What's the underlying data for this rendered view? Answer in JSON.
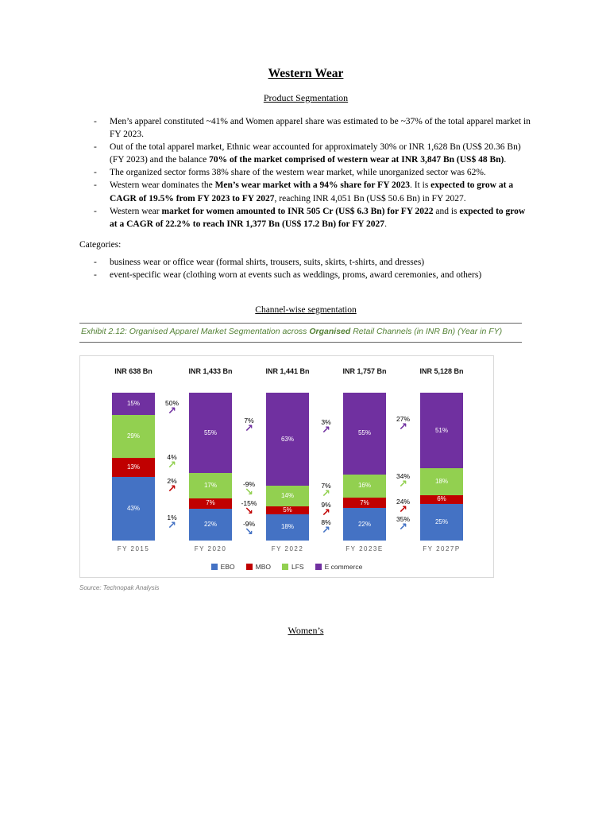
{
  "doc": {
    "title": "Western Wear",
    "subtitle": "Product Segmentation",
    "product_bullets": [
      [
        {
          "t": "Men’s apparel constituted ~41% and Women apparel share was estimated to be ~37% of the total apparel market in FY 2023."
        }
      ],
      [
        {
          "t": "Out of the total apparel market, Ethnic wear accounted for approximately 30% or INR 1,628 Bn (US$ 20.36 Bn) (FY 2023) and the balance "
        },
        {
          "t": "70% of the market comprised of western wear at INR 3,847 Bn (US$ 48 Bn)",
          "b": true
        },
        {
          "t": "."
        }
      ],
      [
        {
          "t": "The organized sector forms 38% share of the western wear market, while unorganized sector was 62%."
        }
      ],
      [
        {
          "t": "Western wear dominates the "
        },
        {
          "t": "Men’s wear market with a 94% share for FY 2023",
          "b": true
        },
        {
          "t": ". It is "
        },
        {
          "t": "expected to grow at a CAGR of 19.5% from FY 2023 to FY 2027",
          "b": true
        },
        {
          "t": ", reaching INR 4,051 Bn (US$ 50.6 Bn) in FY 2027."
        }
      ],
      [
        {
          "t": "Western wear "
        },
        {
          "t": "market for women amounted to INR 505 Cr (US$ 6.3 Bn) for FY 2022",
          "b": true
        },
        {
          "t": " and is "
        },
        {
          "t": "expected to grow at a CAGR of 22.2% to reach INR 1,377 Bn (US$ 17.2 Bn) for FY 2027",
          "b": true
        },
        {
          "t": "."
        }
      ]
    ],
    "categories_label": "Categories:",
    "category_bullets": [
      [
        {
          "t": "business wear or office wear (formal shirts, trousers, suits, skirts, t-shirts, and dresses)"
        }
      ],
      [
        {
          "t": "event-specific wear (clothing worn at events such as weddings, proms, award ceremonies, and others)"
        }
      ]
    ],
    "channel_heading": "Channel-wise segmentation",
    "exhibit_caption": [
      {
        "t": "Exhibit 2.12: Organised Apparel Market Segmentation across "
      },
      {
        "t": "Organised",
        "b": true
      },
      {
        "t": " Retail Channels (in INR Bn) (Year in FY)"
      }
    ],
    "source": "Source: Technopak Analysis",
    "womens_heading": "Women’s"
  },
  "chart_data": {
    "type": "bar",
    "subtype": "stacked-100-percent-column",
    "title": "Organised Apparel Market Segmentation across Organised Retail Channels (in INR Bn)",
    "categories": [
      "FY 2015",
      "FY 2020",
      "FY 2022",
      "FY 2023E",
      "FY 2027P"
    ],
    "totals": [
      "INR 638 Bn",
      "INR 1,433 Bn",
      "INR 1,441 Bn",
      "INR 1,757 Bn",
      "INR 5,128 Bn"
    ],
    "series": [
      {
        "name": "EBO",
        "color": "#4472C4",
        "values": [
          43,
          22,
          18,
          22,
          25
        ]
      },
      {
        "name": "MBO",
        "color": "#C00000",
        "values": [
          13,
          7,
          5,
          7,
          6
        ]
      },
      {
        "name": "LFS",
        "color": "#92D050",
        "values": [
          29,
          17,
          14,
          16,
          18
        ]
      },
      {
        "name": "E commerce",
        "color": "#7030A0",
        "values": [
          15,
          55,
          63,
          55,
          51
        ]
      }
    ],
    "growth_arrows": [
      {
        "from": "FY 2015",
        "to": "FY 2020",
        "labels": [
          {
            "value": "50%",
            "series": "E commerce"
          },
          {
            "value": "4%",
            "series": "LFS"
          },
          {
            "value": "2%",
            "series": "MBO"
          },
          {
            "value": "1%",
            "series": "EBO"
          }
        ]
      },
      {
        "from": "FY 2020",
        "to": "FY 2022",
        "labels": [
          {
            "value": "7%",
            "series": "E commerce"
          },
          {
            "value": "-9%",
            "series": "LFS"
          },
          {
            "value": "-15%",
            "series": "MBO"
          },
          {
            "value": "-9%",
            "series": "EBO"
          }
        ]
      },
      {
        "from": "FY 2022",
        "to": "FY 2023E",
        "labels": [
          {
            "value": "3%",
            "series": "E commerce"
          },
          {
            "value": "7%",
            "series": "LFS"
          },
          {
            "value": "9%",
            "series": "MBO"
          },
          {
            "value": "8%",
            "series": "EBO"
          }
        ]
      },
      {
        "from": "FY 2023E",
        "to": "FY 2027P",
        "labels": [
          {
            "value": "27%",
            "series": "E commerce"
          },
          {
            "value": "34%",
            "series": "LFS"
          },
          {
            "value": "24%",
            "series": "MBO"
          },
          {
            "value": "35%",
            "series": "EBO"
          }
        ]
      }
    ],
    "legend": [
      "EBO",
      "MBO",
      "LFS",
      "E commerce"
    ],
    "value_labels": "percent share shown inside each segment",
    "grid": false,
    "legend_position": "bottom"
  }
}
